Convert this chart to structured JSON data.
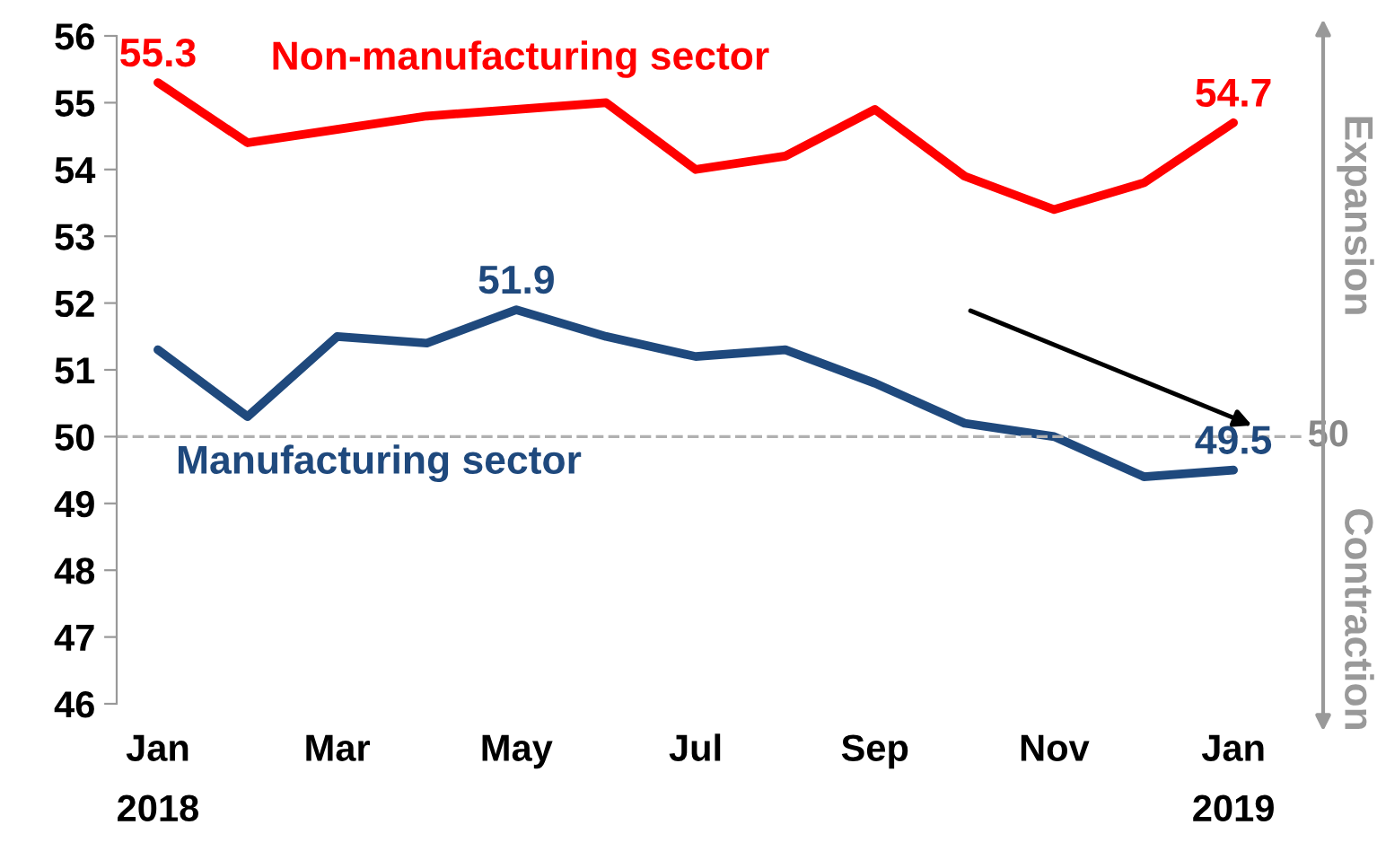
{
  "chart_data": {
    "type": "line",
    "categories": [
      "Jan",
      null,
      "Mar",
      null,
      "May",
      null,
      "Jul",
      null,
      "Sep",
      null,
      "Nov",
      null,
      "Jan"
    ],
    "series": [
      {
        "name": "Non-manufacturing sector",
        "color": "#ff0000",
        "values": [
          55.3,
          54.4,
          54.6,
          54.8,
          54.9,
          55.0,
          54.0,
          54.2,
          54.9,
          53.9,
          53.4,
          53.8,
          54.7
        ],
        "value_labels": [
          "55.3",
          null,
          null,
          null,
          null,
          null,
          null,
          null,
          null,
          null,
          null,
          null,
          "54.7"
        ]
      },
      {
        "name": "Manufacturing sector",
        "color": "#1f497d",
        "values": [
          51.3,
          50.3,
          51.5,
          51.4,
          51.9,
          51.5,
          51.2,
          51.3,
          50.8,
          50.2,
          50.0,
          49.4,
          49.5
        ],
        "value_labels": [
          null,
          null,
          null,
          null,
          "51.9",
          null,
          null,
          null,
          null,
          null,
          null,
          null,
          "49.5"
        ]
      }
    ],
    "ylim": [
      46,
      56
    ],
    "yticks": [
      46,
      47,
      48,
      49,
      50,
      51,
      52,
      53,
      54,
      55,
      56
    ],
    "ref_lines": [
      {
        "axis": "y",
        "value": 50,
        "label": "50",
        "color": "#b0b0b0",
        "line_style": "dashed"
      }
    ],
    "annotations": [
      "2018",
      "2019",
      "Expansion",
      "Contraction"
    ]
  }
}
